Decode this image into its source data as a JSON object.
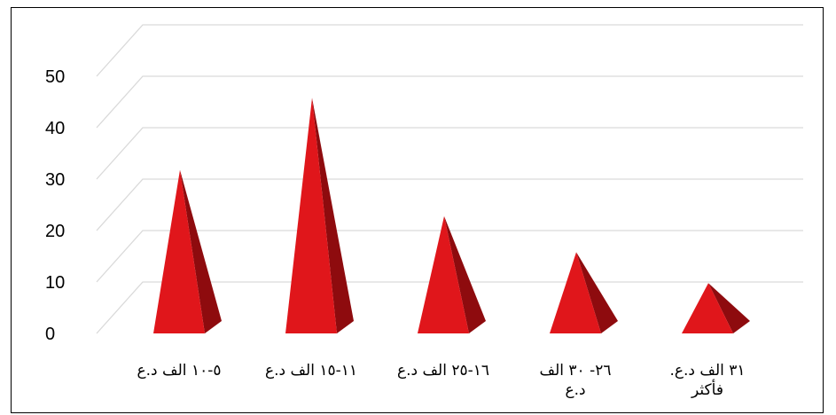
{
  "chart_data": {
    "type": "bar",
    "style": "3d-pyramid",
    "title": "",
    "xlabel": "",
    "ylabel": "",
    "ylim": [
      0,
      50
    ],
    "yticks": [
      "0",
      "10",
      "20",
      "30",
      "40",
      "50"
    ],
    "grid": true,
    "legend": "none",
    "categories": [
      "٥-١٠ الف د.ع",
      "١١-١٥ الف د.ع",
      "١٦-٢٥ الف د.ع",
      "٢٦- ٣٠ الف د.ع",
      "٣١ الف د.ع. فأكثر"
    ],
    "category_lines": [
      [
        "٥-١٠ الف د.ع"
      ],
      [
        "١١-١٥ الف د.ع"
      ],
      [
        "١٦-٢٥ الف د.ع"
      ],
      [
        "٢٦- ٣٠ الف",
        "د.ع"
      ],
      [
        "٣١ الف د.ع.",
        "فأكثر"
      ]
    ],
    "values": [
      28,
      42,
      19,
      12,
      6
    ],
    "colors": {
      "front": "#e0161b",
      "side": "#8e0b0e",
      "grid": "#d9d9d9",
      "border": "#000000"
    }
  }
}
